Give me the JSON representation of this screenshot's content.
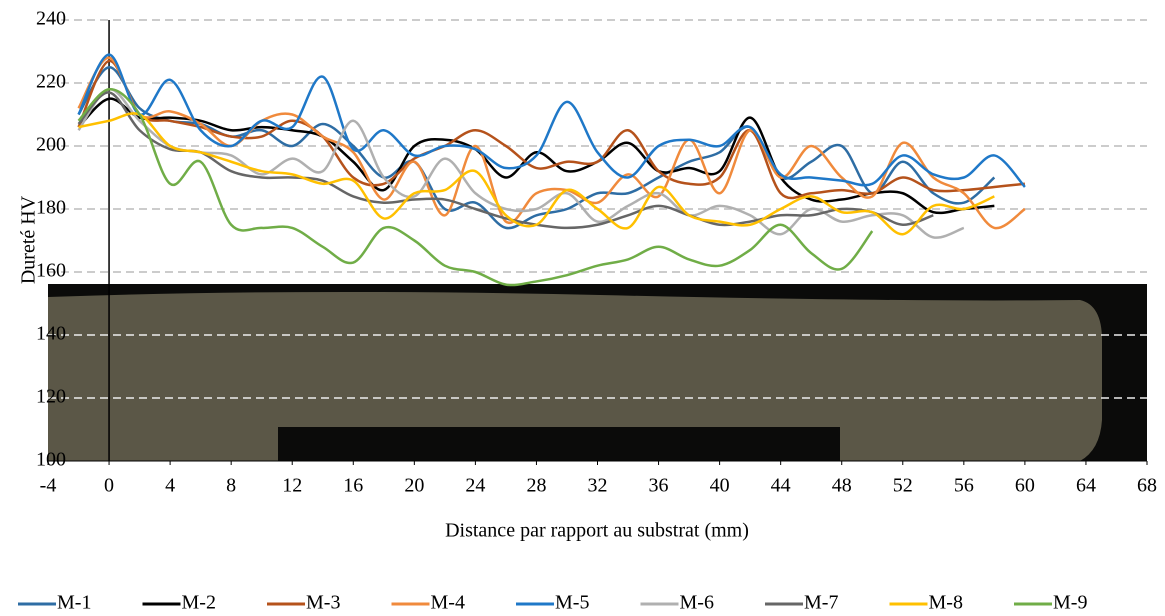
{
  "chart_data": {
    "type": "line",
    "ylabel": "Dureté HV",
    "xlabel": "Distance par rapport au substrat (mm)",
    "x": [
      -2,
      0,
      2,
      4,
      6,
      8,
      10,
      12,
      14,
      16,
      18,
      20,
      22,
      24,
      26,
      28,
      30,
      32,
      34,
      36,
      38,
      40,
      42,
      44,
      46,
      48,
      50,
      52,
      54,
      56,
      58,
      60
    ],
    "series": [
      {
        "name": "M-1",
        "color": "#2e6da4",
        "values": [
          210,
          225,
          212,
          208,
          207,
          203,
          205,
          200,
          207,
          200,
          190,
          195,
          180,
          182,
          174,
          178,
          180,
          185,
          185,
          190,
          195,
          198,
          206,
          190,
          195,
          200,
          185,
          195,
          185,
          182,
          190,
          null
        ]
      },
      {
        "name": "M-2",
        "color": "#000000",
        "values": [
          206,
          215,
          209,
          209,
          208,
          205,
          206,
          205,
          203,
          195,
          186,
          200,
          202,
          199,
          190,
          198,
          192,
          195,
          201,
          192,
          193,
          192,
          209,
          190,
          183,
          183,
          185,
          185,
          179,
          180,
          181,
          null
        ]
      },
      {
        "name": "M-3",
        "color": "#b5521b",
        "values": [
          206,
          227,
          210,
          208,
          206,
          203,
          203,
          208,
          203,
          190,
          188,
          196,
          200,
          205,
          200,
          193,
          195,
          195,
          205,
          192,
          188,
          190,
          205,
          185,
          185,
          186,
          185,
          190,
          186,
          186,
          187,
          188
        ]
      },
      {
        "name": "M-4",
        "color": "#f08a3c",
        "values": [
          212,
          228,
          210,
          211,
          207,
          200,
          208,
          210,
          203,
          198,
          183,
          195,
          178,
          200,
          176,
          185,
          186,
          182,
          191,
          184,
          202,
          185,
          205,
          190,
          200,
          190,
          184,
          201,
          190,
          185,
          174,
          180
        ]
      },
      {
        "name": "M-5",
        "color": "#1f78c8",
        "values": [
          210,
          229,
          210,
          221,
          205,
          200,
          208,
          206,
          222,
          199,
          205,
          197,
          200,
          199,
          193,
          197,
          214,
          198,
          190,
          200,
          202,
          200,
          206,
          191,
          190,
          189,
          188,
          197,
          191,
          190,
          197,
          187
        ]
      },
      {
        "name": "M-6",
        "color": "#b0b0b0",
        "values": [
          205,
          218,
          208,
          200,
          198,
          197,
          191,
          196,
          192,
          208,
          190,
          184,
          196,
          185,
          180,
          180,
          185,
          176,
          181,
          185,
          178,
          181,
          178,
          172,
          180,
          176,
          178,
          178,
          171,
          174,
          null,
          null
        ]
      },
      {
        "name": "M-7",
        "color": "#666666",
        "values": [
          207,
          217,
          205,
          199,
          198,
          192,
          190,
          190,
          189,
          184,
          182,
          183,
          183,
          180,
          177,
          175,
          174,
          175,
          178,
          181,
          178,
          175,
          176,
          178,
          178,
          180,
          179,
          175,
          178,
          null,
          null,
          null
        ]
      },
      {
        "name": "M-8",
        "color": "#ffc000",
        "values": [
          206,
          208,
          210,
          200,
          198,
          195,
          192,
          191,
          188,
          189,
          177,
          185,
          186,
          192,
          178,
          175,
          186,
          180,
          174,
          187,
          178,
          176,
          175,
          180,
          184,
          179,
          179,
          172,
          181,
          180,
          184,
          null
        ]
      },
      {
        "name": "M-9",
        "color": "#70ad47",
        "values": [
          208,
          218,
          210,
          188,
          195,
          175,
          174,
          174,
          168,
          163,
          174,
          170,
          162,
          160,
          156,
          157,
          159,
          162,
          164,
          168,
          164,
          162,
          167,
          175,
          166,
          161,
          173,
          null,
          null,
          null,
          null,
          null
        ]
      }
    ],
    "xlim": [
      -4,
      68
    ],
    "xticks": [
      -4,
      0,
      4,
      8,
      12,
      16,
      20,
      24,
      28,
      32,
      36,
      40,
      44,
      48,
      52,
      56,
      60,
      64,
      68
    ],
    "ylim": [
      100,
      240
    ],
    "yticks": [
      100,
      120,
      140,
      160,
      180,
      200,
      220,
      240
    ],
    "grid": true,
    "legend": "bottom"
  }
}
